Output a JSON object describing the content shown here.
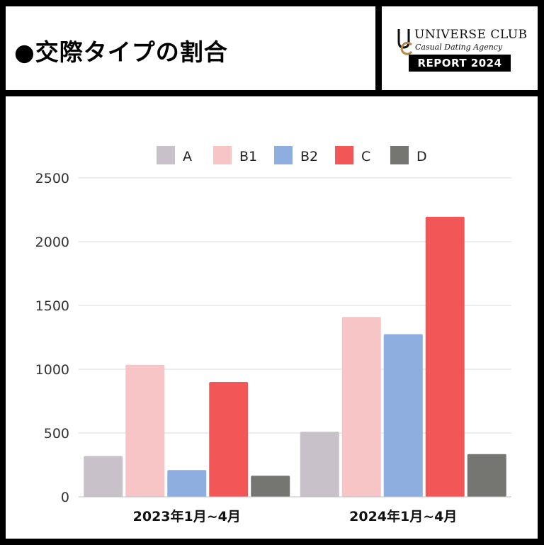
{
  "header": {
    "title": "●交際タイプの割合",
    "brand": {
      "name": "UNIVERSE CLUB",
      "tagline": "Casual Dating Agency",
      "report": "REPORT 2024"
    }
  },
  "colors": {
    "A": "#c8c1c9",
    "B1": "#f7c5c6",
    "B2": "#8eaee0",
    "C": "#f25656",
    "D": "#757572",
    "grid": "#d9d9d9",
    "logo_gold": "#b48a4a"
  },
  "chart_data": {
    "type": "bar",
    "title": "",
    "xlabel": "",
    "ylabel": "",
    "categories": [
      "2023年1月~4月",
      "2024年1月~4月"
    ],
    "series": [
      {
        "name": "A",
        "values": [
          320,
          510
        ]
      },
      {
        "name": "B1",
        "values": [
          1035,
          1410
        ]
      },
      {
        "name": "B2",
        "values": [
          210,
          1275
        ]
      },
      {
        "name": "C",
        "values": [
          900,
          2195
        ]
      },
      {
        "name": "D",
        "values": [
          165,
          335
        ]
      }
    ],
    "ylim": [
      0,
      2500
    ],
    "yticks": [
      0,
      500,
      1000,
      1500,
      2000,
      2500
    ],
    "grid": true,
    "legend": "top"
  }
}
